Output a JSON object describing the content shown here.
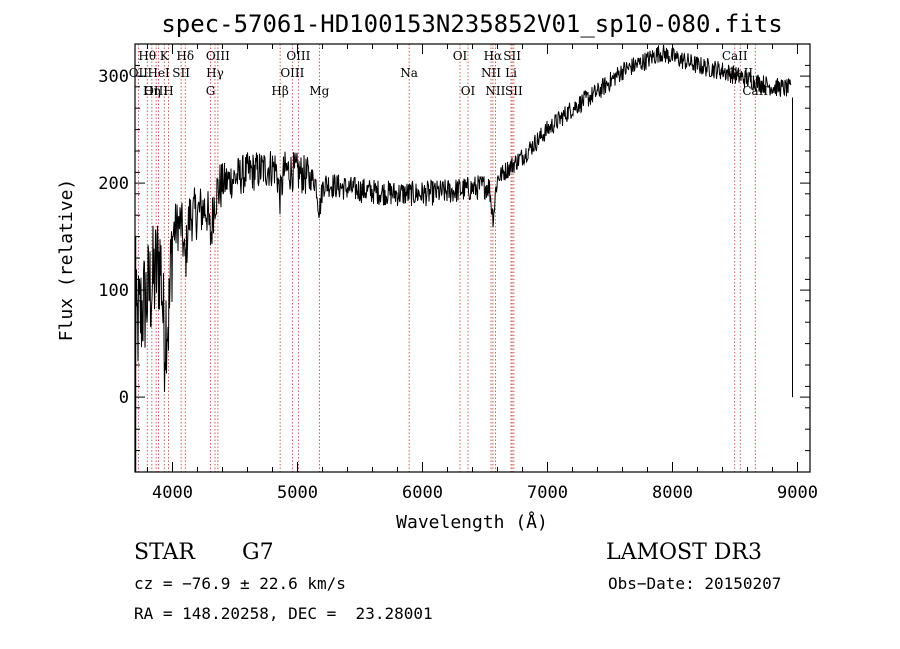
{
  "chart_data": {
    "type": "line",
    "title": "spec-57061-HD100153N235852V01_sp10-080.fits",
    "xlabel": "Wavelength (Å)",
    "ylabel": "Flux (relative)",
    "xlim": [
      3700,
      9100
    ],
    "ylim": [
      -70,
      330
    ],
    "xticks": [
      4000,
      5000,
      6000,
      7000,
      8000,
      9000
    ],
    "yticks": [
      0,
      100,
      200,
      300
    ],
    "grid": false,
    "series": [
      {
        "name": "flux",
        "anchors": [
          [
            3700,
            60
          ],
          [
            3750,
            80
          ],
          [
            3800,
            95
          ],
          [
            3850,
            110
          ],
          [
            3900,
            130
          ],
          [
            3950,
            145
          ],
          [
            4000,
            155
          ],
          [
            4100,
            168
          ],
          [
            4200,
            172
          ],
          [
            4300,
            180
          ],
          [
            4400,
            200
          ],
          [
            4500,
            205
          ],
          [
            4600,
            210
          ],
          [
            4700,
            212
          ],
          [
            4800,
            215
          ],
          [
            4900,
            212
          ],
          [
            5000,
            210
          ],
          [
            5200,
            200
          ],
          [
            5400,
            195
          ],
          [
            5600,
            192
          ],
          [
            5800,
            190
          ],
          [
            6000,
            190
          ],
          [
            6200,
            192
          ],
          [
            6400,
            195
          ],
          [
            6550,
            198
          ],
          [
            6600,
            205
          ],
          [
            6700,
            215
          ],
          [
            6800,
            225
          ],
          [
            7000,
            250
          ],
          [
            7200,
            270
          ],
          [
            7400,
            285
          ],
          [
            7600,
            305
          ],
          [
            7800,
            315
          ],
          [
            7900,
            322
          ],
          [
            8000,
            318
          ],
          [
            8200,
            310
          ],
          [
            8400,
            305
          ],
          [
            8600,
            297
          ],
          [
            8800,
            290
          ],
          [
            8950,
            288
          ]
        ]
      }
    ],
    "dips": [
      {
        "x": 3935,
        "depth": 80
      },
      {
        "x": 3970,
        "depth": 70
      },
      {
        "x": 4101,
        "depth": 40
      },
      {
        "x": 4305,
        "depth": 30
      },
      {
        "x": 4861,
        "depth": 25
      },
      {
        "x": 5175,
        "depth": 25
      },
      {
        "x": 6565,
        "depth": 30
      }
    ],
    "spectral_lines": [
      {
        "label": "Hθ",
        "x": 3798,
        "row": 0
      },
      {
        "label": "K",
        "x": 3934,
        "row": 0
      },
      {
        "label": "Hδ",
        "x": 4102,
        "row": 0
      },
      {
        "label": "OIII",
        "x": 4363,
        "row": 0
      },
      {
        "label": "OIII",
        "x": 5007,
        "row": 0
      },
      {
        "label": "OI",
        "x": 6300,
        "row": 0
      },
      {
        "label": "Hα",
        "x": 6563,
        "row": 0
      },
      {
        "label": "SII",
        "x": 6717,
        "row": 0
      },
      {
        "label": "CaII",
        "x": 8498,
        "row": 0
      },
      {
        "label": "OII",
        "x": 3727,
        "row": 1
      },
      {
        "label": "HeI",
        "x": 3889,
        "row": 1
      },
      {
        "label": "SII",
        "x": 4069,
        "row": 1
      },
      {
        "label": "Hγ",
        "x": 4340,
        "row": 1
      },
      {
        "label": "OIII",
        "x": 4959,
        "row": 1
      },
      {
        "label": "Na",
        "x": 5893,
        "row": 1
      },
      {
        "label": "NII",
        "x": 6548,
        "row": 1
      },
      {
        "label": "Li",
        "x": 6708,
        "row": 1
      },
      {
        "label": "CaII",
        "x": 8542,
        "row": 1
      },
      {
        "label": "OIII",
        "x": 3869,
        "row": 2
      },
      {
        "label": "Hη",
        "x": 3835,
        "row": 2
      },
      {
        "label": "H",
        "x": 3968,
        "row": 2
      },
      {
        "label": "G",
        "x": 4304,
        "row": 2
      },
      {
        "label": "Hβ",
        "x": 4861,
        "row": 2
      },
      {
        "label": "Mg",
        "x": 5175,
        "row": 2
      },
      {
        "label": "OI",
        "x": 6364,
        "row": 2
      },
      {
        "label": "NII",
        "x": 6583,
        "row": 2
      },
      {
        "label": "SII",
        "x": 6731,
        "row": 2
      },
      {
        "label": "CaII",
        "x": 8662,
        "row": 2
      }
    ]
  },
  "info": {
    "class": "STAR",
    "subclass": "G7",
    "survey": "LAMOST DR3",
    "cz": "cz = −76.9 ± 22.6 km/s",
    "obs_date": "Obs−Date: 20150207",
    "radec": "RA = 148.20258, DEC =  23.28001"
  },
  "colors": {
    "line": "#000000",
    "marker": "#c0392b",
    "background": "#ffffff"
  }
}
